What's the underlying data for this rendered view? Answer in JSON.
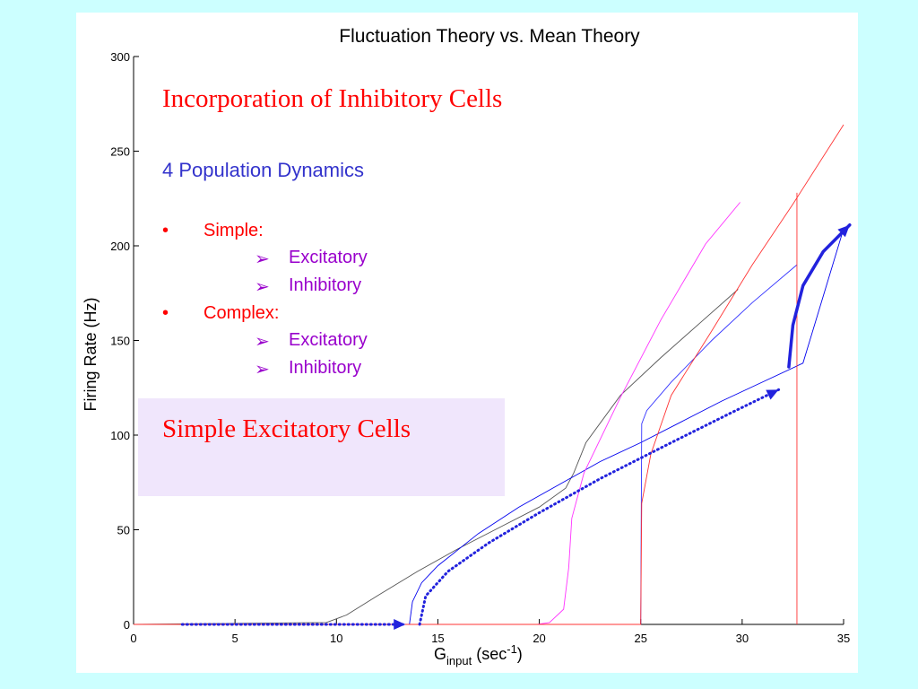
{
  "chart_data": {
    "type": "line",
    "title": "Fluctuation Theory vs. Mean Theory",
    "xlabel_main": "G",
    "xlabel_sub": "input",
    "xlabel_rest_open": " (sec",
    "xlabel_sup": "-1",
    "xlabel_close": ")",
    "ylabel": "Firing Rate (Hz)",
    "xlim": [
      0,
      35
    ],
    "ylim": [
      0,
      300
    ],
    "xticks": [
      0,
      5,
      10,
      15,
      20,
      25,
      30,
      35
    ],
    "yticks": [
      0,
      50,
      100,
      150,
      200,
      250,
      300
    ],
    "grid": false,
    "series": [
      {
        "color": "#555555",
        "x": [
          0,
          9.5,
          10.5,
          12,
          14,
          16,
          18,
          20,
          21.3,
          21.7,
          22.3,
          24,
          26,
          28,
          29.8
        ],
        "y": [
          0,
          1,
          5,
          15,
          28,
          40,
          51,
          62,
          72,
          80,
          96,
          121,
          141,
          160,
          177
        ]
      },
      {
        "color": "#0000ee",
        "x": [
          0,
          13.6,
          13.75,
          14.2,
          15,
          17,
          19,
          21,
          23,
          25,
          27,
          29,
          31,
          33,
          35
        ],
        "y": [
          0,
          0,
          12,
          22,
          31,
          48,
          62,
          74,
          86,
          96,
          107,
          118,
          128,
          138,
          209
        ]
      },
      {
        "color": "#3333ff",
        "x": [
          0,
          25,
          25.05,
          25.3,
          26.5,
          28.5,
          30.5,
          32.7
        ],
        "y": [
          0,
          0,
          106,
          113,
          128,
          150,
          170,
          190
        ]
      },
      {
        "color": "#ff33ff",
        "x": [
          0,
          19.9,
          20.5,
          21.2,
          21.45,
          21.6,
          22.2,
          24,
          26,
          28.2,
          29.9
        ],
        "y": [
          0,
          0,
          1,
          8,
          30,
          56,
          80,
          120,
          161,
          201,
          223
        ]
      },
      {
        "color": "#ff3333",
        "x": [
          0,
          25,
          25.05,
          25.5,
          26.5,
          28.5,
          30.5,
          32.5,
          35
        ],
        "y": [
          0,
          0,
          64,
          90,
          121,
          155,
          190,
          222,
          264
        ]
      }
    ],
    "verticals": [
      {
        "color": "#ff3333",
        "x": 32.7,
        "y0": 0,
        "y1": 228
      }
    ],
    "dotted_arrows": [
      {
        "color": "#2222dd",
        "points": [
          [
            2.4,
            0
          ],
          [
            13.4,
            0
          ]
        ]
      },
      {
        "color": "#2222dd",
        "points": [
          [
            14.1,
            0
          ],
          [
            14.4,
            15
          ],
          [
            15.5,
            28
          ],
          [
            17.5,
            43
          ],
          [
            20,
            59
          ],
          [
            23,
            77
          ],
          [
            26.5,
            96
          ],
          [
            29.5,
            112
          ],
          [
            31.8,
            124
          ]
        ]
      }
    ],
    "solid_arrows": [
      {
        "color": "#2222dd",
        "points": [
          [
            32.3,
            136
          ],
          [
            32.5,
            158
          ],
          [
            33,
            179
          ],
          [
            34,
            197
          ],
          [
            35.3,
            211
          ]
        ]
      }
    ]
  },
  "text": {
    "heading1": "Incorporation of Inhibitory Cells",
    "heading2": "4 Population Dynamics",
    "bullet_glyph": "•",
    "sub_glyph": "➢",
    "simple": "Simple:",
    "complex": "Complex:",
    "excitatory": "Excitatory",
    "inhibitory": "Inhibitory",
    "box_label": "Simple Excitatory Cells"
  }
}
